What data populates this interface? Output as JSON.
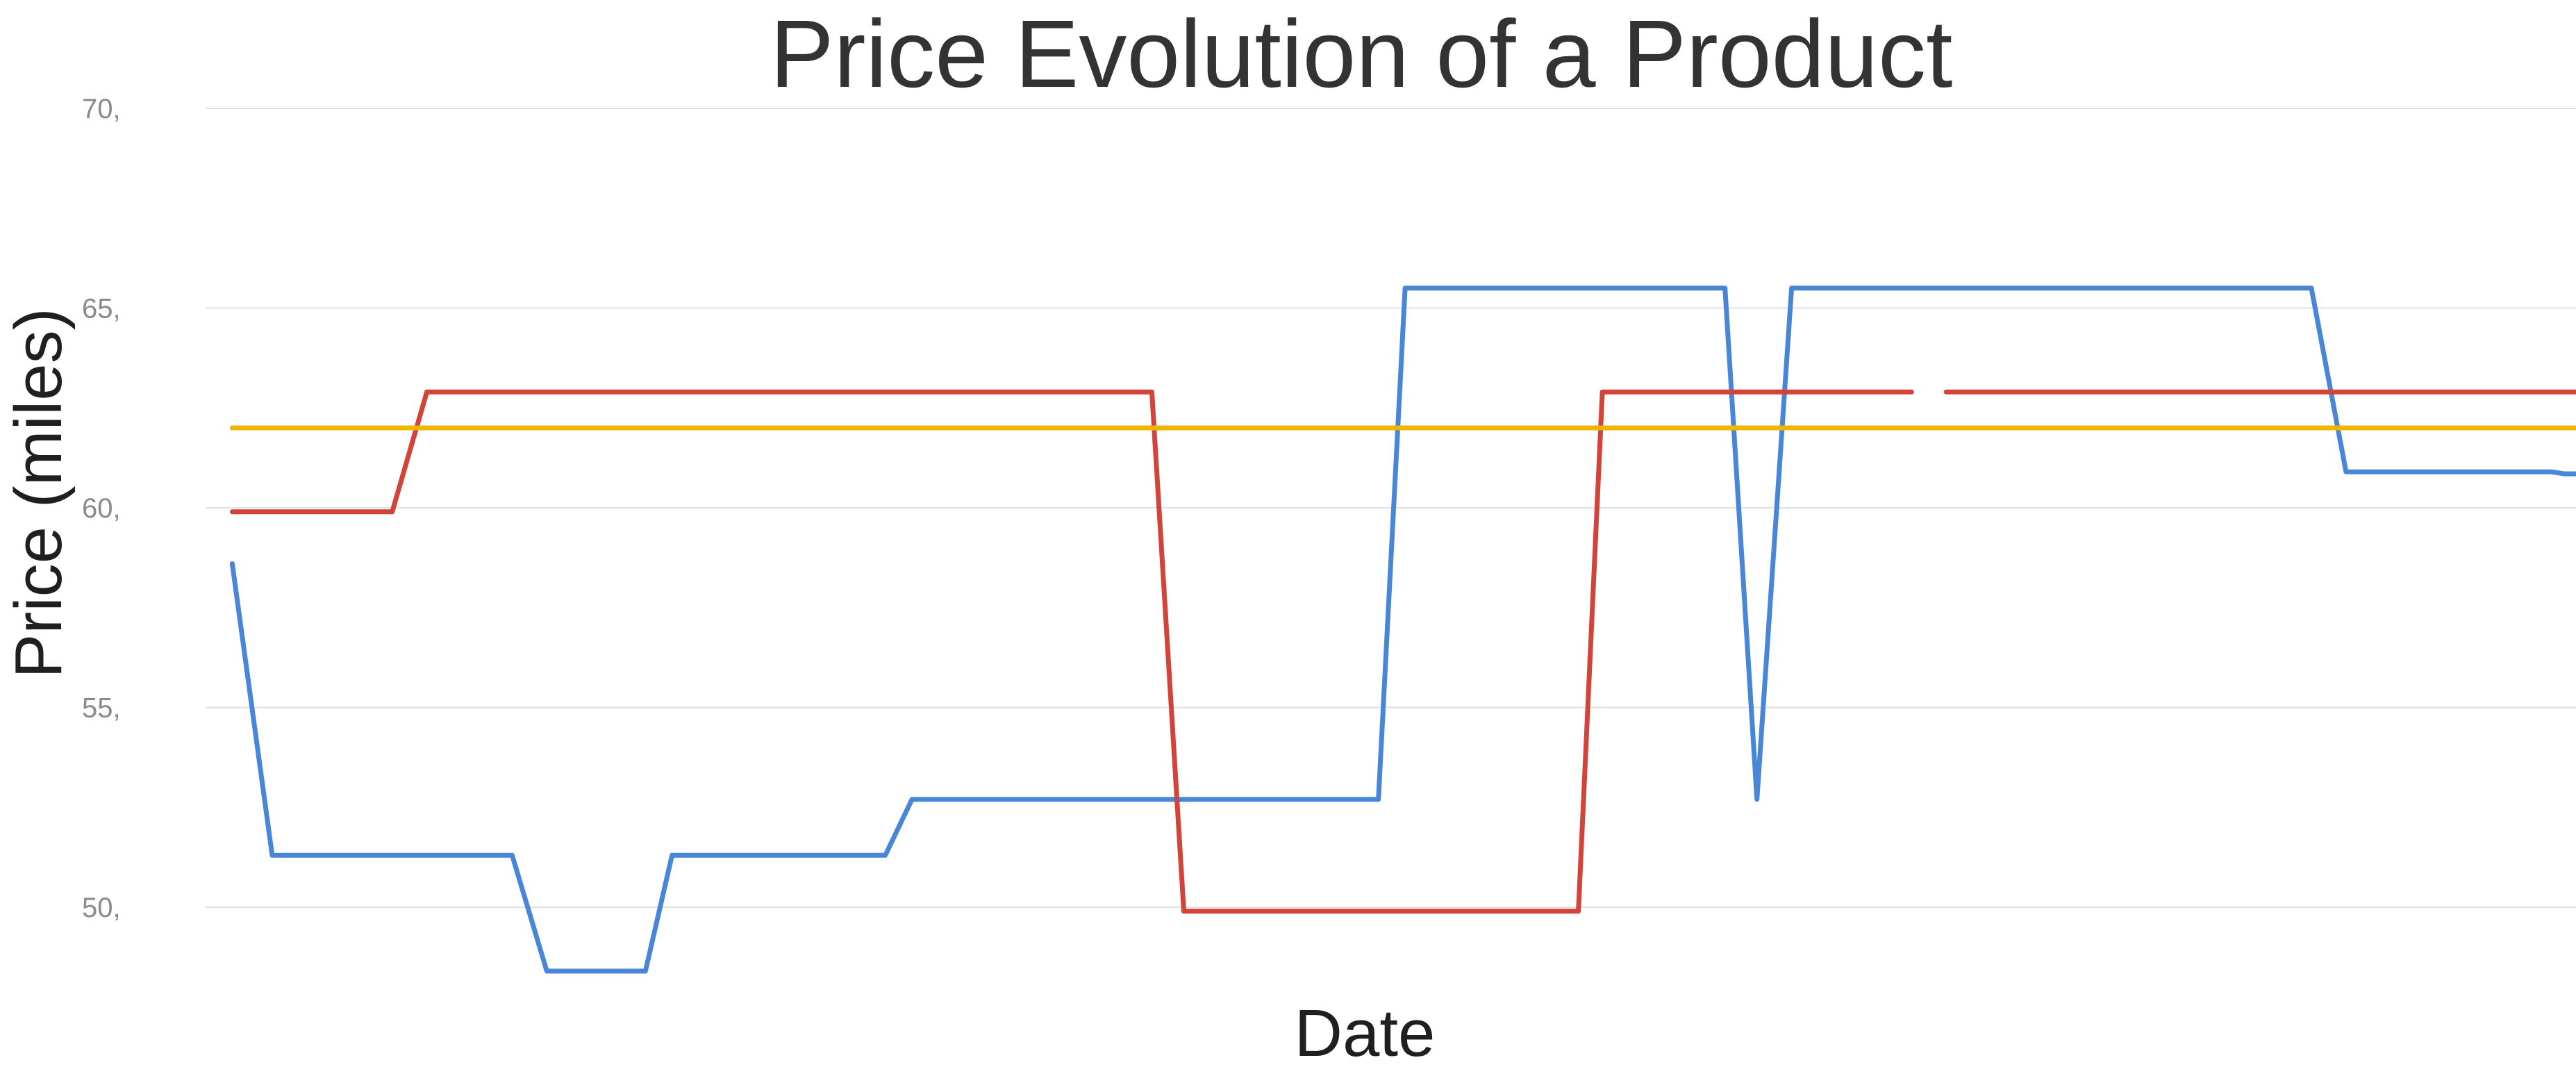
{
  "chart_data": {
    "type": "line",
    "title": "Price Evolution of a Product",
    "xlabel": "Date",
    "ylabel": "Price (miles)",
    "ylim": [
      47,
      70
    ],
    "xlim": [
      0,
      100
    ],
    "grid": true,
    "legend": "none",
    "y_ticks": [
      {
        "value": 50,
        "label": "50,"
      },
      {
        "value": 55,
        "label": "55,"
      },
      {
        "value": 60,
        "label": "60,"
      },
      {
        "value": 65,
        "label": "65,"
      },
      {
        "value": 70,
        "label": "70,"
      }
    ],
    "series": [
      {
        "color": "#4a86d8",
        "segments": [
          [
            [
              1,
              58.6
            ],
            [
              2.5,
              51.3
            ],
            [
              11.5,
              51.3
            ],
            [
              12.8,
              48.4
            ],
            [
              16.5,
              48.4
            ],
            [
              17.5,
              51.3
            ],
            [
              25.5,
              51.3
            ],
            [
              26.5,
              52.7
            ],
            [
              44,
              52.7
            ],
            [
              45,
              65.5
            ],
            [
              57,
              65.5
            ],
            [
              58.2,
              52.7
            ],
            [
              59.5,
              65.5
            ],
            [
              79,
              65.5
            ],
            [
              80.3,
              60.9
            ],
            [
              88,
              60.9
            ],
            [
              88.5,
              60.85
            ],
            [
              89.5,
              60.85
            ]
          ]
        ]
      },
      {
        "color": "#d2433a",
        "segments": [
          [
            [
              1,
              59.9
            ],
            [
              7,
              59.9
            ],
            [
              8.3,
              62.9
            ],
            [
              35.5,
              62.9
            ],
            [
              36.7,
              49.9
            ],
            [
              51.5,
              49.9
            ],
            [
              52.4,
              62.9
            ],
            [
              64,
              62.9
            ]
          ],
          [
            [
              65.3,
              62.9
            ],
            [
              89.5,
              62.9
            ]
          ]
        ]
      },
      {
        "color": "#f0b400",
        "segments": [
          [
            [
              1,
              62.0
            ],
            [
              89.5,
              62.0
            ]
          ]
        ]
      }
    ]
  }
}
